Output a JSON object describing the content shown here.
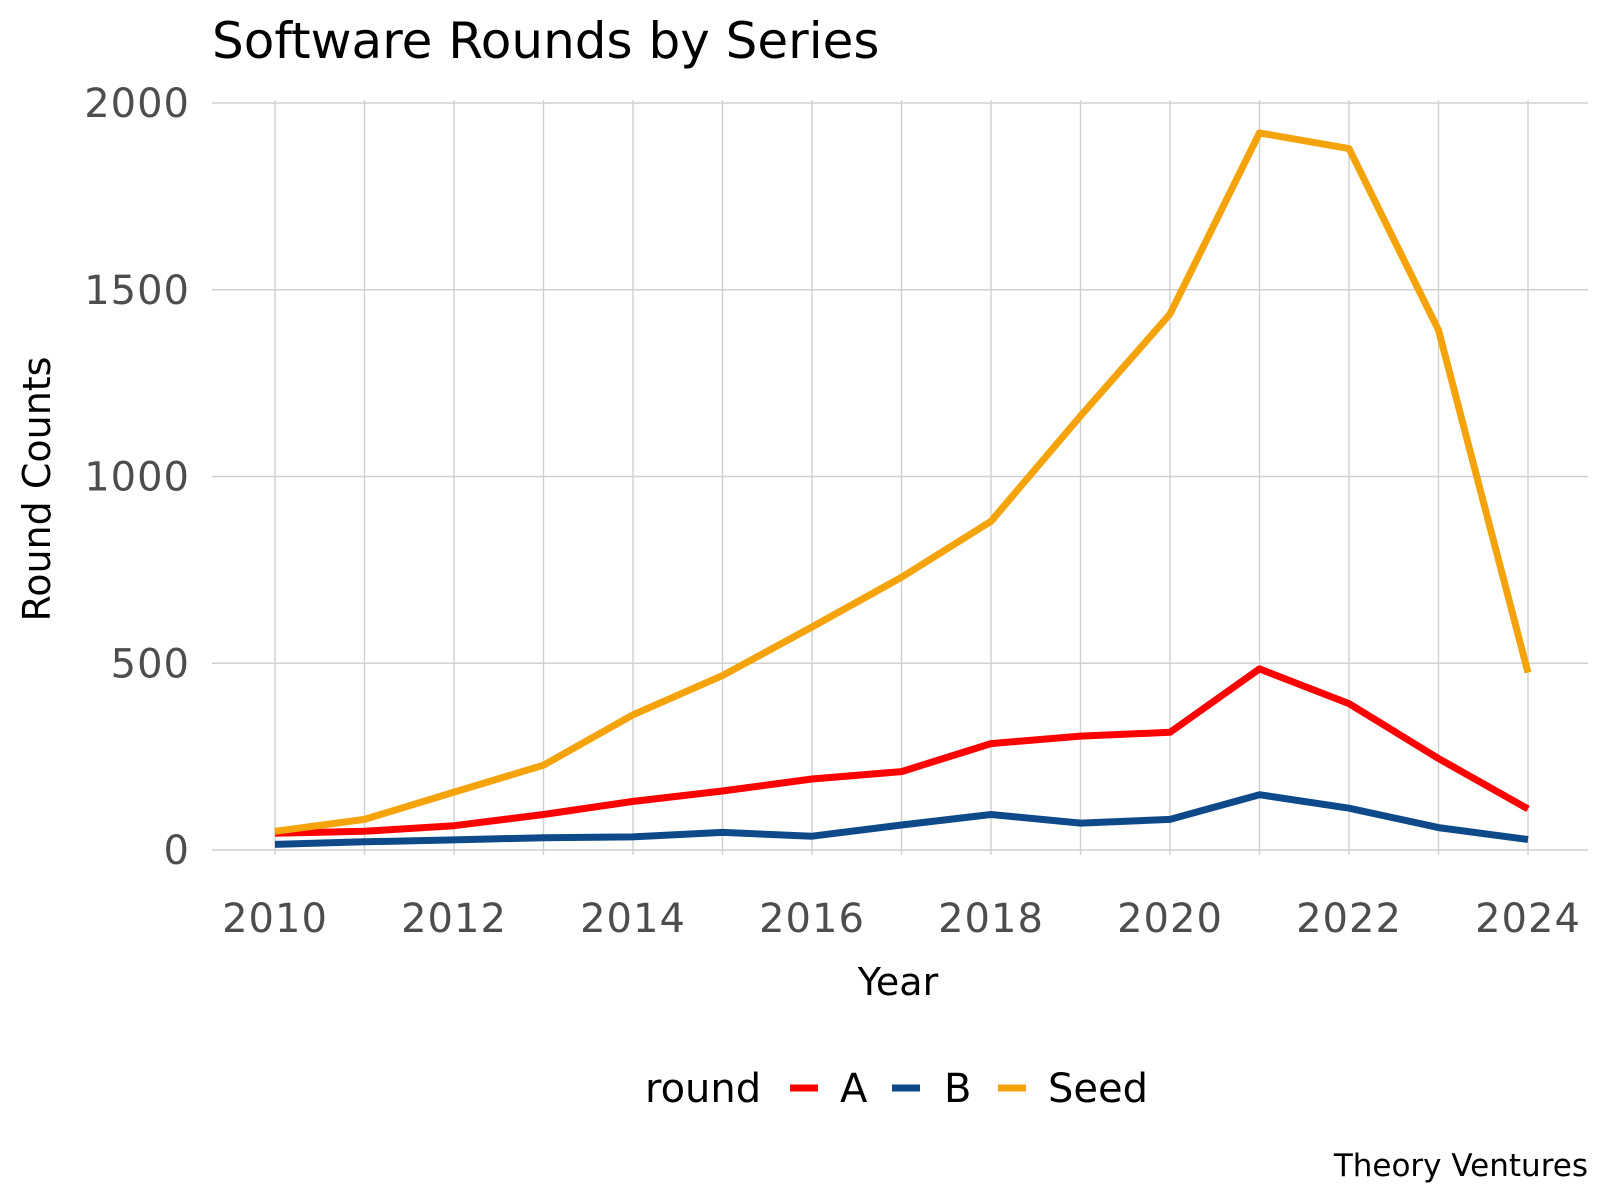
{
  "chart_data": {
    "type": "line",
    "title": "Software Rounds by Series",
    "xlabel": "Year",
    "ylabel": "Round Counts",
    "x": [
      2010,
      2011,
      2012,
      2013,
      2014,
      2015,
      2016,
      2017,
      2018,
      2019,
      2020,
      2021,
      2022,
      2023,
      2024
    ],
    "xticks": [
      2010,
      2012,
      2014,
      2016,
      2018,
      2020,
      2022,
      2024
    ],
    "xlim": [
      2010,
      2024
    ],
    "yticks": [
      0,
      500,
      1000,
      1500,
      2000
    ],
    "ylim": [
      0,
      2000
    ],
    "grid": true,
    "legend_position": "bottom",
    "legend_title": "round",
    "series": [
      {
        "name": "A",
        "color": "#ff0000",
        "values": [
          45,
          50,
          65,
          95,
          130,
          158,
          190,
          210,
          285,
          305,
          315,
          485,
          392,
          245,
          110
        ]
      },
      {
        "name": "B",
        "color": "#0e4a8a",
        "values": [
          15,
          22,
          27,
          33,
          35,
          47,
          37,
          67,
          95,
          72,
          82,
          148,
          112,
          60,
          28
        ]
      },
      {
        "name": "Seed",
        "color": "#f5a30a",
        "values": [
          50,
          82,
          155,
          227,
          362,
          467,
          597,
          730,
          880,
          1162,
          1435,
          1920,
          1878,
          1392,
          475
        ]
      }
    ],
    "caption": "Theory Ventures"
  }
}
